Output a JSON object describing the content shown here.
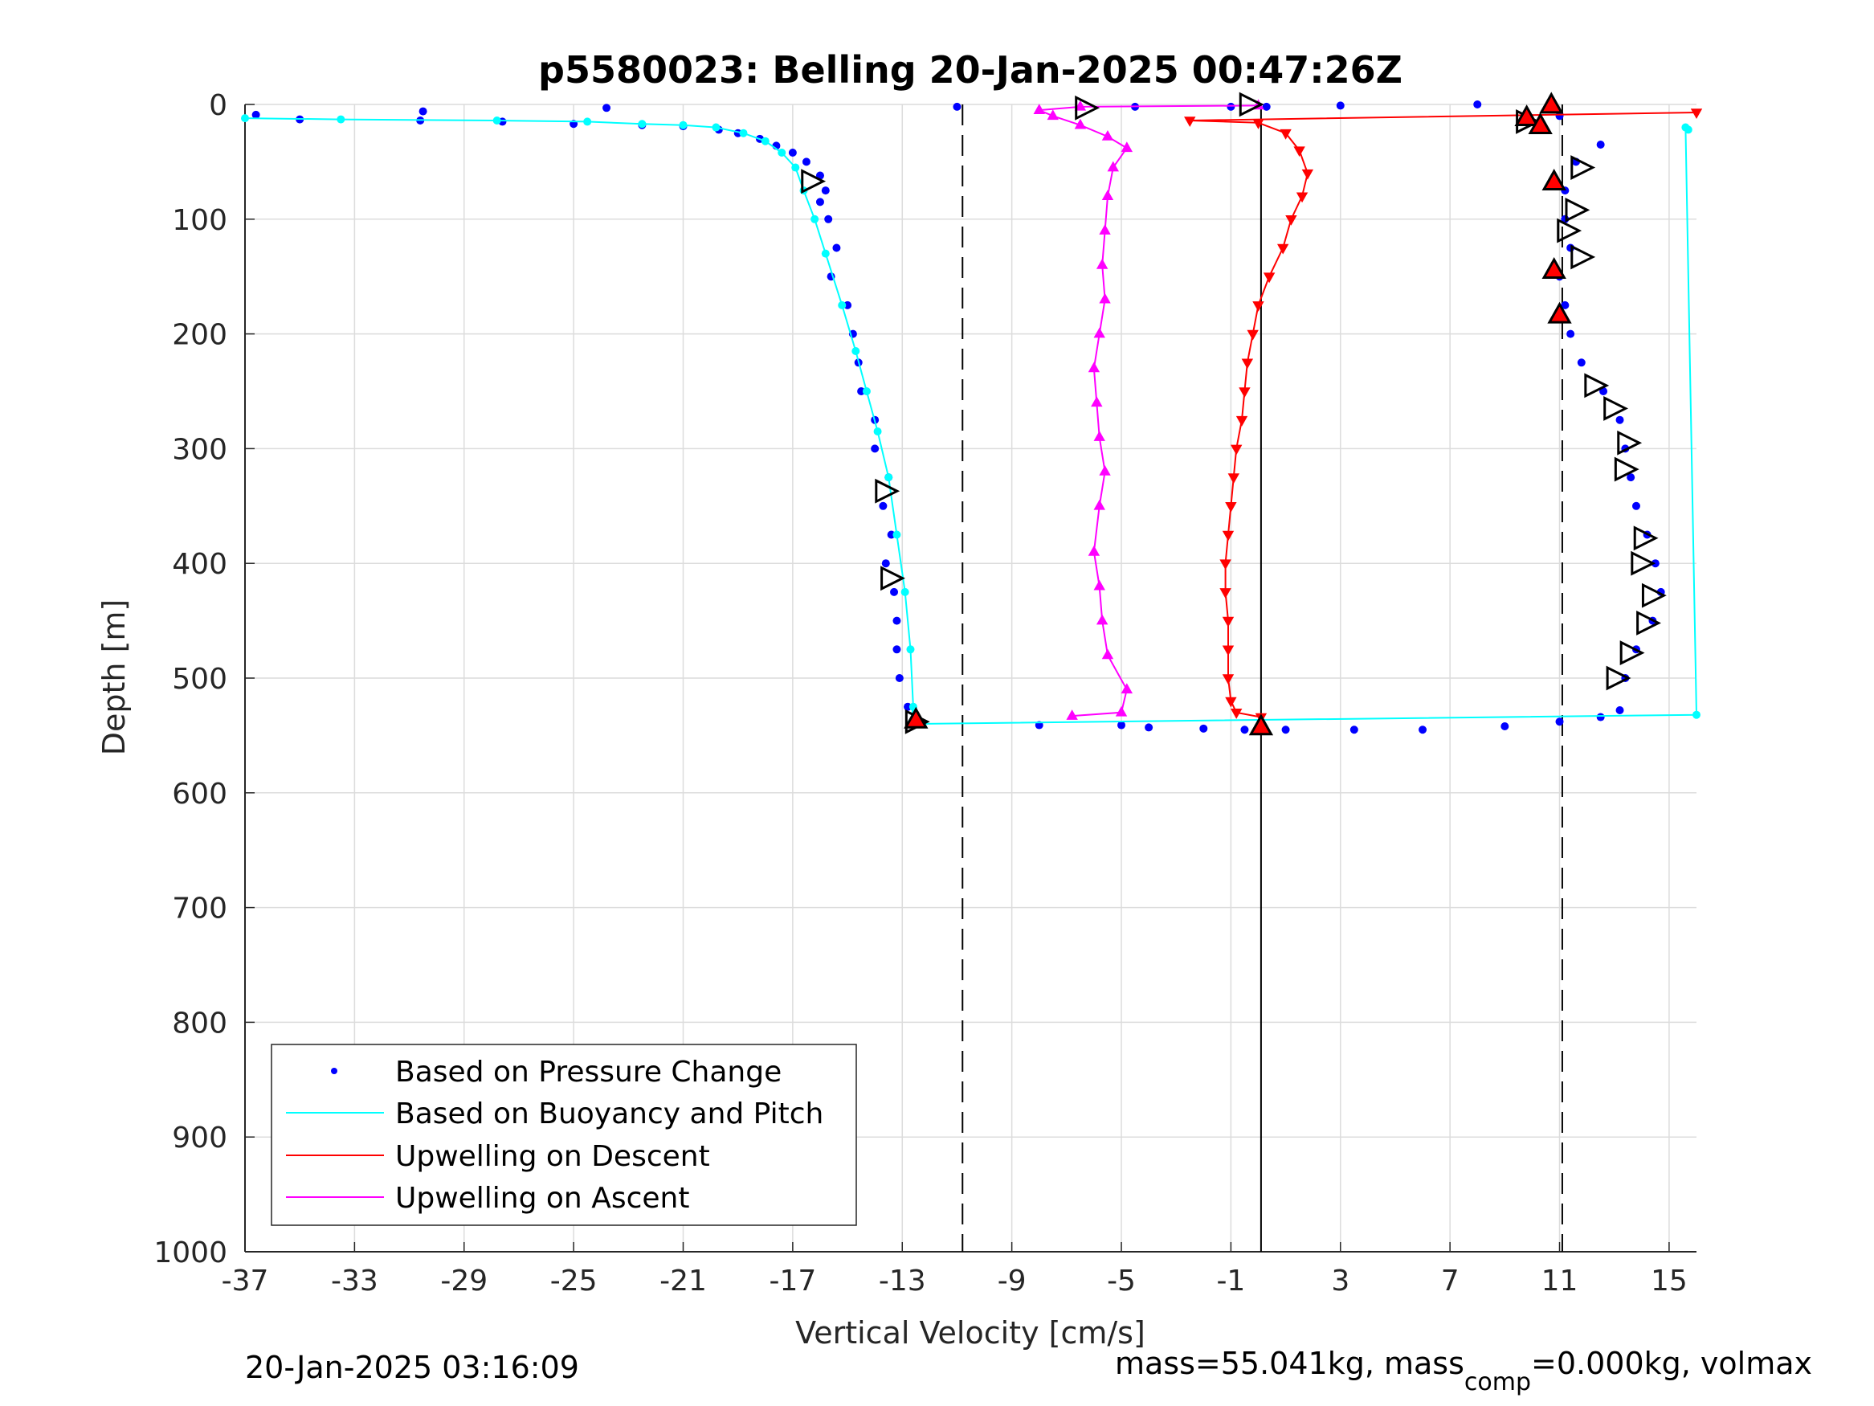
{
  "chart_data": {
    "type": "scatter",
    "title": "p5580023: Belling 20-Jan-2025 00:47:26Z",
    "xlabel": "Vertical Velocity [cm/s]",
    "ylabel": "Depth [m]",
    "xlim": [
      -37,
      16
    ],
    "ylim": [
      0,
      1000
    ],
    "y_reversed": true,
    "grid": true,
    "x_ticks": [
      -37,
      -33,
      -29,
      -25,
      -21,
      -17,
      -13,
      -9,
      -5,
      -1,
      3,
      7,
      11,
      15
    ],
    "y_ticks": [
      0,
      100,
      200,
      300,
      400,
      500,
      600,
      700,
      800,
      900,
      1000
    ],
    "reference_lines": {
      "dashed_x": [
        -10.8,
        11.1
      ],
      "solid_x": 0.1
    },
    "legend_position": "bottom-left",
    "series": [
      {
        "name": "Based on Pressure Change",
        "style": "dots",
        "color": "#0000ff",
        "points": [
          [
            -36.6,
            9
          ],
          [
            -35,
            13
          ],
          [
            -30.5,
            6
          ],
          [
            -30.6,
            14
          ],
          [
            -27.6,
            15
          ],
          [
            -25,
            17
          ],
          [
            -23.8,
            3
          ],
          [
            -22.5,
            18
          ],
          [
            -21,
            19
          ],
          [
            -19.7,
            22
          ],
          [
            -19,
            25
          ],
          [
            -18.2,
            30
          ],
          [
            -17.6,
            36
          ],
          [
            -17,
            42
          ],
          [
            -16.5,
            50
          ],
          [
            -16,
            62
          ],
          [
            -15.8,
            75
          ],
          [
            -16,
            85
          ],
          [
            -15.7,
            100
          ],
          [
            -15.4,
            125
          ],
          [
            -15.6,
            150
          ],
          [
            -15,
            175
          ],
          [
            -14.8,
            200
          ],
          [
            -14.6,
            225
          ],
          [
            -14.5,
            250
          ],
          [
            -14,
            275
          ],
          [
            -14,
            300
          ],
          [
            -13.5,
            325
          ],
          [
            -13.7,
            350
          ],
          [
            -13.4,
            375
          ],
          [
            -13.6,
            400
          ],
          [
            -13.3,
            425
          ],
          [
            -13.2,
            450
          ],
          [
            -13.2,
            475
          ],
          [
            -13.1,
            500
          ],
          [
            -12.8,
            525
          ],
          [
            -12.5,
            540
          ],
          [
            -8,
            541
          ],
          [
            -5,
            541
          ],
          [
            -4,
            543
          ],
          [
            -2,
            544
          ],
          [
            -0.5,
            545
          ],
          [
            1,
            545
          ],
          [
            3.5,
            545
          ],
          [
            6,
            545
          ],
          [
            9,
            542
          ],
          [
            11,
            538
          ],
          [
            12.5,
            534
          ],
          [
            13.2,
            528
          ],
          [
            13.4,
            500
          ],
          [
            13.8,
            475
          ],
          [
            14.4,
            450
          ],
          [
            14.7,
            425
          ],
          [
            14.5,
            400
          ],
          [
            14.2,
            375
          ],
          [
            13.8,
            350
          ],
          [
            13.6,
            325
          ],
          [
            13.4,
            300
          ],
          [
            13.2,
            275
          ],
          [
            12.6,
            250
          ],
          [
            11.8,
            225
          ],
          [
            11.4,
            200
          ],
          [
            11.2,
            175
          ],
          [
            11,
            150
          ],
          [
            11.4,
            125
          ],
          [
            11.2,
            100
          ],
          [
            11.2,
            75
          ],
          [
            11.6,
            50
          ],
          [
            12.5,
            35
          ],
          [
            11,
            10
          ],
          [
            0.3,
            2
          ],
          [
            -1,
            2
          ],
          [
            -4.5,
            2
          ],
          [
            -11,
            2
          ],
          [
            3,
            1
          ],
          [
            8,
            0
          ]
        ]
      },
      {
        "name": "Based on Buoyancy and Pitch",
        "style": "line-dots",
        "color": "#00ffff",
        "points": [
          [
            -37,
            12
          ],
          [
            -33.5,
            13
          ],
          [
            -27.8,
            14
          ],
          [
            -24.5,
            15
          ],
          [
            -22.5,
            17
          ],
          [
            -21,
            18
          ],
          [
            -19.8,
            20
          ],
          [
            -18.8,
            25
          ],
          [
            -18,
            32
          ],
          [
            -17.4,
            42
          ],
          [
            -16.9,
            55
          ],
          [
            -16.6,
            75
          ],
          [
            -16.2,
            100
          ],
          [
            -15.8,
            130
          ],
          [
            -15.2,
            175
          ],
          [
            -14.7,
            215
          ],
          [
            -14.3,
            250
          ],
          [
            -13.9,
            285
          ],
          [
            -13.5,
            325
          ],
          [
            -13.2,
            375
          ],
          [
            -12.9,
            425
          ],
          [
            -12.7,
            475
          ],
          [
            -12.6,
            525
          ],
          [
            -12.7,
            540
          ],
          [
            16,
            532
          ],
          [
            15.6,
            20
          ],
          [
            15.7,
            22
          ]
        ]
      },
      {
        "name": "Upwelling on Descent",
        "style": "line-down-triangles",
        "color": "#ff0000",
        "points": [
          [
            16,
            7
          ],
          [
            -2.5,
            14
          ],
          [
            0,
            16
          ],
          [
            1,
            25
          ],
          [
            1.5,
            40
          ],
          [
            1.8,
            60
          ],
          [
            1.6,
            80
          ],
          [
            1.2,
            100
          ],
          [
            0.9,
            125
          ],
          [
            0.4,
            150
          ],
          [
            0,
            175
          ],
          [
            -0.2,
            200
          ],
          [
            -0.4,
            225
          ],
          [
            -0.5,
            250
          ],
          [
            -0.6,
            275
          ],
          [
            -0.8,
            300
          ],
          [
            -0.9,
            325
          ],
          [
            -1,
            350
          ],
          [
            -1.1,
            375
          ],
          [
            -1.2,
            400
          ],
          [
            -1.2,
            425
          ],
          [
            -1.1,
            450
          ],
          [
            -1.1,
            475
          ],
          [
            -1.1,
            500
          ],
          [
            -1,
            520
          ],
          [
            -0.8,
            530
          ],
          [
            0.1,
            534
          ]
        ]
      },
      {
        "name": "Upwelling on Ascent",
        "style": "line-up-triangles",
        "color": "#ff00ff",
        "points": [
          [
            -6.8,
            533
          ],
          [
            -5,
            530
          ],
          [
            -4.8,
            510
          ],
          [
            -5.5,
            480
          ],
          [
            -5.7,
            450
          ],
          [
            -5.8,
            420
          ],
          [
            -6,
            390
          ],
          [
            -5.8,
            350
          ],
          [
            -5.6,
            320
          ],
          [
            -5.8,
            290
          ],
          [
            -5.9,
            260
          ],
          [
            -6,
            230
          ],
          [
            -5.8,
            200
          ],
          [
            -5.6,
            170
          ],
          [
            -5.7,
            140
          ],
          [
            -5.6,
            110
          ],
          [
            -5.5,
            80
          ],
          [
            -5.3,
            55
          ],
          [
            -4.8,
            38
          ],
          [
            -5.5,
            28
          ],
          [
            -6.5,
            18
          ],
          [
            -7.5,
            10
          ],
          [
            -8,
            5
          ],
          [
            -6.5,
            2
          ],
          [
            0,
            1
          ]
        ]
      }
    ],
    "markers": {
      "open_triangles": [
        [
          -16.3,
          67
        ],
        [
          -13.6,
          337
        ],
        [
          -13.4,
          413
        ],
        [
          -12.5,
          538
        ],
        [
          -6.3,
          3
        ],
        [
          -0.3,
          0
        ],
        [
          9.8,
          15
        ],
        [
          11.8,
          55
        ],
        [
          11.3,
          110
        ],
        [
          11.6,
          92
        ],
        [
          11.8,
          133
        ],
        [
          12.3,
          245
        ],
        [
          13.0,
          265
        ],
        [
          13.5,
          295
        ],
        [
          13.4,
          318
        ],
        [
          14.1,
          378
        ],
        [
          14.0,
          400
        ],
        [
          14.4,
          428
        ],
        [
          14.2,
          452
        ],
        [
          13.6,
          478
        ],
        [
          13.1,
          500
        ]
      ],
      "red_triangles": [
        [
          10.7,
          1
        ],
        [
          9.8,
          12
        ],
        [
          10.3,
          19
        ],
        [
          10.8,
          68
        ],
        [
          10.8,
          145
        ],
        [
          11.0,
          184
        ],
        [
          -12.5,
          537
        ],
        [
          0.1,
          543
        ]
      ]
    }
  },
  "footer": {
    "timestamp": "20-Jan-2025 03:16:09",
    "mass_prefix": "mass=55.041kg, mass",
    "mass_sub": "comp",
    "mass_suffix": "=0.000kg, volmax"
  }
}
